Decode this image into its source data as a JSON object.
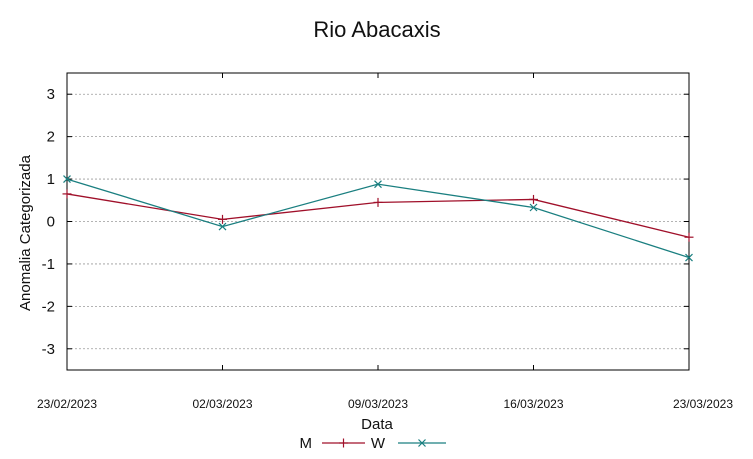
{
  "chart_data": {
    "type": "line",
    "title": "Rio Abacaxis",
    "xlabel": "Data",
    "ylabel": "Anomalia Categorizada",
    "categories": [
      "23/02/2023",
      "02/03/2023",
      "09/03/2023",
      "16/03/2023",
      "23/03/2023"
    ],
    "yticks": [
      "3",
      "2",
      "1",
      "0",
      "-1",
      "-2",
      "-3"
    ],
    "ylim": [
      -3.5,
      3.5
    ],
    "grid": true,
    "legend_position": "bottom-center",
    "series": [
      {
        "name": "M",
        "values": [
          0.65,
          0.05,
          0.45,
          0.52,
          -0.37
        ],
        "color": "#a0102a",
        "marker": "plus"
      },
      {
        "name": "W",
        "values": [
          1.0,
          -0.12,
          0.88,
          0.33,
          -0.85
        ],
        "color": "#1a7f80",
        "marker": "x"
      }
    ]
  }
}
